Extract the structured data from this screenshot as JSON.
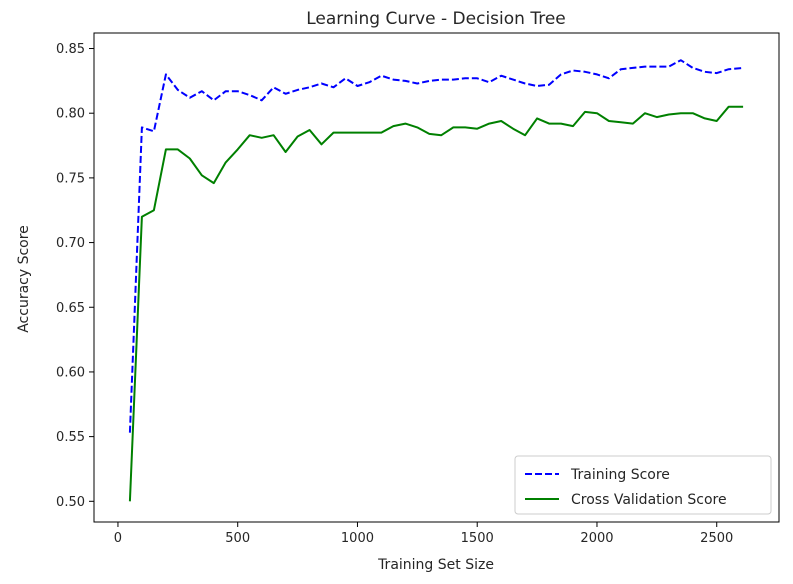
{
  "chart_data": {
    "type": "line",
    "title": "Learning Curve - Decision Tree",
    "xlabel": "Training Set Size",
    "ylabel": "Accuracy Score",
    "xlim": [
      -100,
      2760
    ],
    "ylim": [
      0.484,
      0.862
    ],
    "xticks": [
      0,
      500,
      1000,
      1500,
      2000,
      2500
    ],
    "xtick_labels": [
      "0",
      "500",
      "1000",
      "1500",
      "2000",
      "2500"
    ],
    "yticks": [
      0.5,
      0.55,
      0.6,
      0.65,
      0.7,
      0.75,
      0.8,
      0.85
    ],
    "ytick_labels": [
      "0.50",
      "0.55",
      "0.60",
      "0.65",
      "0.70",
      "0.75",
      "0.80",
      "0.85"
    ],
    "grid": false,
    "legend_position": "lower-right",
    "x": [
      50,
      100,
      150,
      200,
      250,
      300,
      350,
      400,
      450,
      500,
      550,
      600,
      650,
      700,
      750,
      800,
      850,
      900,
      950,
      1000,
      1050,
      1100,
      1150,
      1200,
      1250,
      1300,
      1350,
      1400,
      1450,
      1500,
      1550,
      1600,
      1650,
      1700,
      1750,
      1800,
      1850,
      1900,
      1950,
      2000,
      2050,
      2100,
      2150,
      2200,
      2250,
      2300,
      2350,
      2400,
      2450,
      2500,
      2550,
      2610
    ],
    "series": [
      {
        "name": "Training Score",
        "color": "#0000ff",
        "style": "dashed",
        "values": [
          0.553,
          0.789,
          0.786,
          0.83,
          0.818,
          0.812,
          0.817,
          0.81,
          0.817,
          0.817,
          0.814,
          0.81,
          0.82,
          0.815,
          0.818,
          0.82,
          0.823,
          0.82,
          0.827,
          0.821,
          0.824,
          0.829,
          0.826,
          0.825,
          0.823,
          0.825,
          0.826,
          0.826,
          0.827,
          0.827,
          0.824,
          0.829,
          0.826,
          0.823,
          0.821,
          0.822,
          0.83,
          0.833,
          0.832,
          0.83,
          0.827,
          0.834,
          0.835,
          0.836,
          0.836,
          0.836,
          0.841,
          0.835,
          0.832,
          0.831,
          0.834,
          0.835
        ]
      },
      {
        "name": "Cross Validation Score",
        "color": "#008000",
        "style": "solid",
        "values": [
          0.5,
          0.72,
          0.725,
          0.772,
          0.772,
          0.765,
          0.752,
          0.746,
          0.762,
          0.772,
          0.783,
          0.781,
          0.783,
          0.77,
          0.782,
          0.787,
          0.776,
          0.785,
          0.785,
          0.785,
          0.785,
          0.785,
          0.79,
          0.792,
          0.789,
          0.784,
          0.783,
          0.789,
          0.789,
          0.788,
          0.792,
          0.794,
          0.788,
          0.783,
          0.796,
          0.792,
          0.792,
          0.79,
          0.801,
          0.8,
          0.794,
          0.793,
          0.792,
          0.8,
          0.797,
          0.799,
          0.8,
          0.8,
          0.796,
          0.794,
          0.805,
          0.805
        ]
      }
    ]
  }
}
